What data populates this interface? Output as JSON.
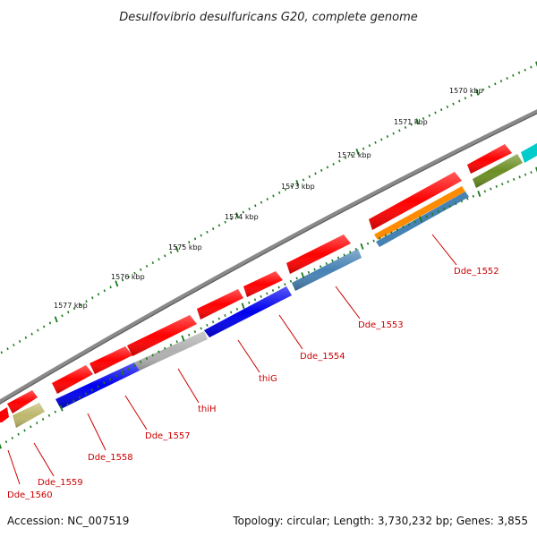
{
  "title": "Desulfovibrio desulfuricans G20, complete genome",
  "accession": "Accession: NC_007519",
  "summary": "Topology: circular; Length: 3,730,232 bp; Genes: 3,855",
  "colors": {
    "backbone": "#8a8a8a",
    "tick_green": "#1a7a1a",
    "gene_red": "#ff0000",
    "gene_blue": "#0000ee",
    "gene_steelblue": "#4682b4",
    "gene_olive": "#6b8e23",
    "gene_khaki": "#bdb76b",
    "gene_orange": "#ff8c00",
    "gene_silver": "#b0b0b0",
    "gene_cyan": "#00cccc",
    "label_red": "#cc0000"
  },
  "kbp_labels": [
    {
      "text": "1570 kbp",
      "bp": 1570000
    },
    {
      "text": "1571 kbp",
      "bp": 1571000
    },
    {
      "text": "1572 kbp",
      "bp": 1572000
    },
    {
      "text": "1573 kbp",
      "bp": 1573000
    },
    {
      "text": "1574 kbp",
      "bp": 1574000
    },
    {
      "text": "1575 kbp",
      "bp": 1575000
    },
    {
      "text": "1576 kbp",
      "bp": 1576000
    },
    {
      "text": "1577 kbp",
      "bp": 1577000
    }
  ],
  "genes": [
    {
      "label": "Dde_1552"
    },
    {
      "label": "Dde_1553"
    },
    {
      "label": "Dde_1554"
    },
    {
      "label": "thiG"
    },
    {
      "label": "thiH"
    },
    {
      "label": "Dde_1557"
    },
    {
      "label": "Dde_1558"
    },
    {
      "label": "Dde_1559"
    },
    {
      "label": "Dde_1560"
    }
  ]
}
